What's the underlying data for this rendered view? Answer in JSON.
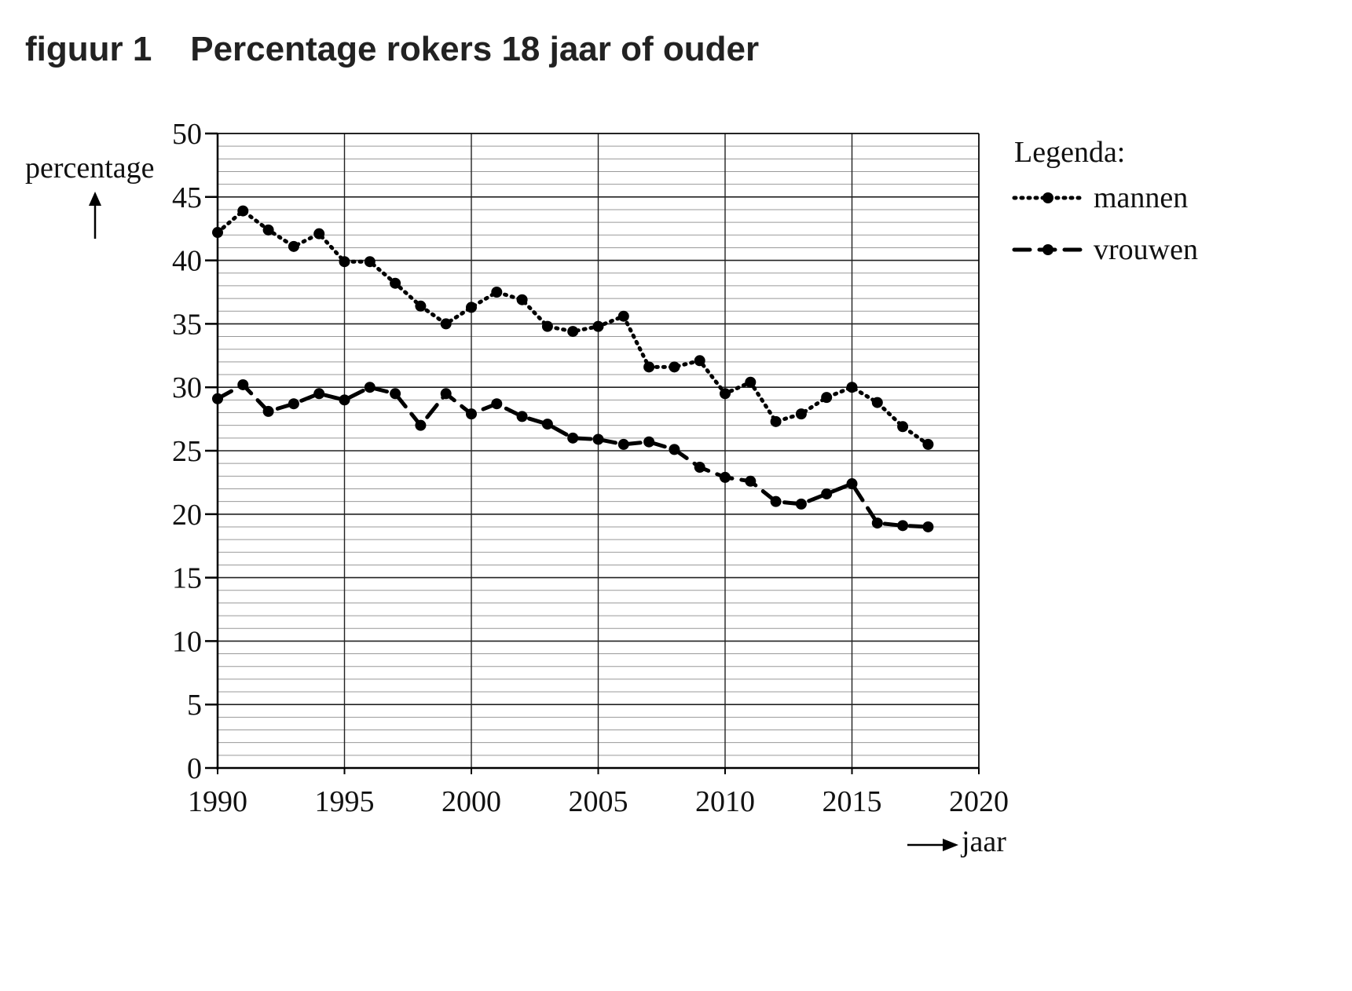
{
  "figure": {
    "label": "figuur 1",
    "title": "Percentage rokers 18 jaar of ouder"
  },
  "legend": {
    "title": "Legenda:",
    "items": [
      {
        "label": "mannen",
        "style": "dotted"
      },
      {
        "label": "vrouwen",
        "style": "dashed"
      }
    ]
  },
  "chart_data": {
    "type": "line",
    "title": "Percentage rokers 18 jaar of ouder",
    "xlabel": "jaar",
    "ylabel": "percentage",
    "xlim": [
      1990,
      2020
    ],
    "ylim": [
      0,
      50
    ],
    "x_ticks": [
      1990,
      1995,
      2000,
      2005,
      2010,
      2015,
      2020
    ],
    "y_ticks": [
      0,
      5,
      10,
      15,
      20,
      25,
      30,
      35,
      40,
      45,
      50
    ],
    "grid": true,
    "legend_position": "right",
    "x": [
      1990,
      1991,
      1992,
      1993,
      1994,
      1995,
      1996,
      1997,
      1998,
      1999,
      2000,
      2001,
      2002,
      2003,
      2004,
      2005,
      2006,
      2007,
      2008,
      2009,
      2010,
      2011,
      2012,
      2013,
      2014,
      2015,
      2016,
      2017,
      2018
    ],
    "series": [
      {
        "name": "mannen",
        "style": "dotted",
        "values": [
          42.2,
          43.9,
          42.4,
          41.1,
          42.1,
          39.9,
          39.9,
          38.2,
          36.4,
          35.0,
          36.3,
          37.5,
          36.9,
          34.8,
          34.4,
          34.8,
          35.6,
          31.6,
          31.6,
          32.1,
          29.5,
          30.4,
          27.3,
          27.9,
          29.2,
          30.0,
          28.8,
          26.9,
          25.5
        ]
      },
      {
        "name": "vrouwen",
        "style": "dashed",
        "values": [
          29.1,
          30.2,
          28.1,
          28.7,
          29.5,
          29.0,
          30.0,
          29.5,
          27.0,
          29.5,
          27.9,
          28.7,
          27.7,
          27.1,
          26.0,
          25.9,
          25.5,
          25.7,
          25.1,
          23.7,
          22.9,
          22.6,
          21.0,
          20.8,
          21.6,
          22.4,
          19.3,
          19.1,
          19.0
        ]
      }
    ]
  }
}
